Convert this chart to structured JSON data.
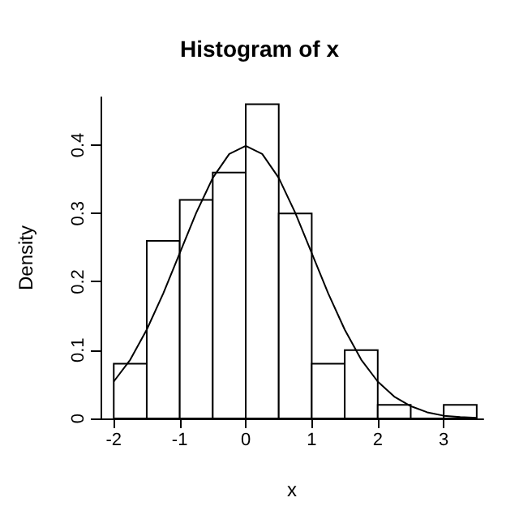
{
  "chart_data": {
    "type": "histogram",
    "title": "Histogram of x",
    "xlabel": "x",
    "ylabel": "Density",
    "xlim": [
      -2.2,
      3.6
    ],
    "xticks": [
      -2,
      -1,
      0,
      1,
      2,
      3
    ],
    "ylim": [
      0,
      0.47
    ],
    "yticks": [
      0,
      0.1,
      0.2,
      0.3,
      0.4
    ],
    "grid": false,
    "series": [
      {
        "color": "#ffffff",
        "bins": [
          -2,
          -1.5,
          -1,
          -0.5,
          0,
          0.5,
          1,
          1.5,
          2,
          2.5,
          3,
          3.5
        ],
        "values": [
          0.08,
          0.26,
          0.32,
          0.36,
          0.46,
          0.3,
          0.08,
          0.1,
          0.02,
          0.0,
          0.02
        ]
      },
      {
        "type": "line",
        "color": "#000000",
        "marker": "none",
        "line_style": "solid",
        "x": [
          -2,
          -1.75,
          -1.5,
          -1.25,
          -1,
          -0.75,
          -0.5,
          -0.25,
          0,
          0.25,
          0.5,
          0.75,
          1,
          1.25,
          1.5,
          1.75,
          2,
          2.25,
          2.5,
          2.75,
          3,
          3.25,
          3.5
        ],
        "values": [
          0.054,
          0.086,
          0.13,
          0.183,
          0.242,
          0.301,
          0.352,
          0.387,
          0.399,
          0.387,
          0.352,
          0.301,
          0.242,
          0.183,
          0.13,
          0.086,
          0.054,
          0.032,
          0.018,
          0.009,
          0.004,
          0.002,
          0.001
        ]
      }
    ]
  }
}
